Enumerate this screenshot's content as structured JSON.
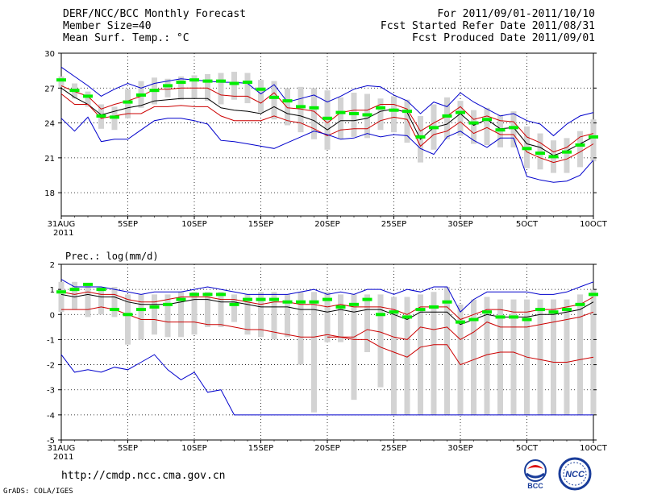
{
  "header": {
    "title": "DERF/NCC/BCC Monthly Forecast",
    "member_size": "Member Size=40",
    "variable": "Mean Surf. Temp.: °C",
    "period": "For 2011/09/01-2011/10/10",
    "fcst_started": "Fcst Started Refer Date 2011/08/31",
    "fcst_produced": "Fcst Produced Date 2011/09/01"
  },
  "footer": {
    "url": "http://cmdp.ncc.cma.gov.cn",
    "grads": "GrADS: COLA/IGES",
    "logo_bcc": "BCC",
    "logo_ncc": "NCC"
  },
  "colors": {
    "spread": "#d3d3d3",
    "mean": "#00ee00",
    "median": "#000000",
    "percentile": "#cc0000",
    "minmax": "#0000cc"
  },
  "chart_data": [
    {
      "type": "line",
      "title": "Mean Surf. Temp.: °C",
      "xlabel": "",
      "ylabel": "",
      "x_tick_labels": [
        "31AUG",
        "5SEP",
        "10SEP",
        "15SEP",
        "20SEP",
        "25SEP",
        "30SEP",
        "5OCT",
        "10OCT"
      ],
      "x_tick_days": [
        0,
        5,
        10,
        15,
        20,
        25,
        30,
        35,
        40
      ],
      "x_year_label": "2011",
      "y_ticks": [
        18,
        21,
        24,
        27,
        30
      ],
      "ylim": [
        16,
        30
      ],
      "x": [
        0,
        1,
        2,
        3,
        4,
        5,
        6,
        7,
        8,
        9,
        10,
        11,
        12,
        13,
        14,
        15,
        16,
        17,
        18,
        19,
        20,
        21,
        22,
        23,
        24,
        25,
        26,
        27,
        28,
        29,
        30,
        31,
        32,
        33,
        34,
        35,
        36,
        37,
        38,
        39,
        40
      ],
      "series": [
        {
          "name": "max",
          "role": "minmax",
          "values": [
            28.8,
            28.0,
            27.2,
            26.3,
            26.9,
            27.4,
            27.0,
            27.4,
            27.6,
            27.8,
            27.7,
            27.6,
            27.5,
            27.5,
            27.4,
            26.5,
            27.3,
            25.8,
            26.1,
            26.4,
            25.8,
            26.3,
            26.9,
            27.2,
            27.1,
            26.4,
            25.9,
            24.8,
            25.8,
            25.4,
            26.6,
            25.8,
            25.2,
            24.6,
            24.8,
            24.2,
            23.9,
            22.9,
            23.9,
            24.6,
            24.9
          ]
        },
        {
          "name": "p90",
          "role": "percentile",
          "values": [
            27.2,
            26.7,
            26.3,
            25.2,
            25.6,
            25.9,
            26.3,
            26.9,
            26.9,
            27.0,
            27.0,
            27.0,
            26.4,
            26.3,
            26.3,
            25.7,
            26.6,
            25.3,
            25.2,
            25.0,
            24.0,
            24.9,
            25.1,
            25.1,
            25.6,
            25.6,
            25.2,
            23.3,
            24.0,
            24.6,
            25.4,
            24.3,
            24.6,
            24.2,
            24.1,
            22.8,
            22.3,
            21.5,
            21.9,
            22.8,
            23.1
          ]
        },
        {
          "name": "median",
          "role": "median",
          "values": [
            27.0,
            26.2,
            25.6,
            24.7,
            25.0,
            25.3,
            25.5,
            25.9,
            26.0,
            26.1,
            26.1,
            26.1,
            25.3,
            25.1,
            25.0,
            24.8,
            25.4,
            24.8,
            24.6,
            24.2,
            23.4,
            24.2,
            24.2,
            24.4,
            25.0,
            25.2,
            24.9,
            22.6,
            23.6,
            23.9,
            24.8,
            23.8,
            24.3,
            23.5,
            23.6,
            22.2,
            21.9,
            21.2,
            21.6,
            22.2,
            22.8
          ]
        },
        {
          "name": "p10",
          "role": "percentile",
          "values": [
            26.5,
            25.6,
            25.6,
            24.4,
            24.6,
            24.8,
            24.8,
            25.4,
            25.4,
            25.5,
            25.4,
            25.4,
            24.6,
            24.2,
            24.2,
            24.2,
            24.6,
            24.2,
            24.0,
            23.5,
            22.9,
            23.4,
            23.5,
            23.5,
            24.2,
            24.5,
            24.3,
            22.0,
            23.0,
            23.3,
            24.1,
            23.1,
            23.6,
            23.0,
            23.0,
            21.5,
            21.0,
            20.6,
            20.9,
            21.5,
            22.2
          ]
        },
        {
          "name": "min",
          "role": "minmax",
          "values": [
            24.4,
            23.3,
            24.5,
            22.4,
            22.6,
            22.6,
            23.4,
            24.2,
            24.4,
            24.4,
            24.2,
            23.9,
            22.5,
            22.4,
            22.2,
            22.0,
            21.8,
            22.3,
            22.8,
            23.3,
            23.0,
            22.6,
            22.7,
            23.1,
            22.8,
            23.0,
            22.9,
            21.8,
            21.3,
            22.8,
            23.3,
            22.5,
            21.9,
            22.7,
            22.7,
            19.4,
            19.1,
            18.9,
            19.0,
            19.5,
            20.8
          ]
        },
        {
          "name": "ensemble_mean",
          "role": "mean",
          "values": [
            27.7,
            26.8,
            26.3,
            24.6,
            24.5,
            25.8,
            26.4,
            26.8,
            27.2,
            27.5,
            27.7,
            27.6,
            27.6,
            27.4,
            27.5,
            26.9,
            26.2,
            25.9,
            25.4,
            25.3,
            24.4,
            24.9,
            24.8,
            24.7,
            25.3,
            25.1,
            25.0,
            22.8,
            23.6,
            24.6,
            24.9,
            24.0,
            24.3,
            23.4,
            23.6,
            21.8,
            21.4,
            21.1,
            21.5,
            22.1,
            22.8
          ]
        }
      ],
      "spread_bars": {
        "role": "spread",
        "low": [
          27.1,
          26.1,
          25.4,
          23.5,
          23.4,
          24.4,
          25.3,
          25.6,
          26.2,
          26.0,
          26.1,
          25.9,
          25.6,
          26.0,
          25.7,
          24.9,
          24.3,
          23.8,
          23.2,
          22.6,
          21.7,
          22.6,
          22.8,
          22.7,
          23.4,
          23.2,
          22.3,
          20.6,
          21.7,
          22.6,
          22.9,
          22.2,
          22.1,
          21.9,
          21.9,
          20.1,
          20.0,
          19.7,
          19.7,
          20.2,
          20.7
        ],
        "high": [
          28.0,
          27.4,
          26.7,
          25.6,
          25.4,
          26.9,
          27.6,
          27.9,
          27.8,
          28.0,
          28.1,
          28.2,
          28.3,
          28.4,
          28.3,
          27.7,
          27.6,
          27.0,
          27.1,
          27.0,
          26.8,
          26.2,
          26.6,
          26.5,
          26.1,
          26.3,
          26.0,
          24.6,
          25.6,
          26.2,
          25.9,
          25.1,
          25.3,
          24.7,
          25.0,
          23.7,
          23.1,
          22.5,
          22.7,
          23.3,
          24.3
        ]
      }
    },
    {
      "type": "line",
      "title": "Prec.: log(mm/d)",
      "xlabel": "",
      "ylabel": "",
      "x_tick_labels": [
        "31AUG",
        "5SEP",
        "10SEP",
        "15SEP",
        "20SEP",
        "25SEP",
        "30SEP",
        "5OCT",
        "10OCT"
      ],
      "x_tick_days": [
        0,
        5,
        10,
        15,
        20,
        25,
        30,
        35,
        40
      ],
      "x_year_label": "2011",
      "y_ticks": [
        -5,
        -4,
        -3,
        -2,
        -1,
        0,
        1,
        2
      ],
      "ylim": [
        -5,
        2
      ],
      "x": [
        0,
        1,
        2,
        3,
        4,
        5,
        6,
        7,
        8,
        9,
        10,
        11,
        12,
        13,
        14,
        15,
        16,
        17,
        18,
        19,
        20,
        21,
        22,
        23,
        24,
        25,
        26,
        27,
        28,
        29,
        30,
        31,
        32,
        33,
        34,
        35,
        36,
        37,
        38,
        39,
        40
      ],
      "series": [
        {
          "name": "max",
          "role": "minmax",
          "values": [
            1.4,
            1.1,
            1.1,
            1.1,
            1.0,
            0.9,
            0.8,
            0.9,
            0.9,
            0.9,
            1.0,
            1.1,
            1.0,
            0.9,
            0.8,
            0.8,
            0.8,
            0.8,
            0.9,
            1.0,
            0.8,
            0.9,
            0.8,
            1.0,
            1.0,
            0.8,
            1.0,
            0.9,
            1.1,
            1.1,
            0.1,
            0.6,
            0.9,
            0.9,
            0.9,
            0.9,
            0.8,
            0.8,
            0.9,
            1.1,
            1.3
          ]
        },
        {
          "name": "p90",
          "role": "percentile",
          "values": [
            0.9,
            0.8,
            0.9,
            0.8,
            0.8,
            0.6,
            0.5,
            0.5,
            0.6,
            0.7,
            0.7,
            0.7,
            0.6,
            0.6,
            0.5,
            0.4,
            0.5,
            0.5,
            0.4,
            0.4,
            0.3,
            0.4,
            0.3,
            0.3,
            0.3,
            0.2,
            0.0,
            0.3,
            0.3,
            0.3,
            -0.2,
            0.0,
            0.2,
            0.2,
            0.1,
            0.1,
            0.2,
            0.2,
            0.3,
            0.4,
            0.7
          ]
        },
        {
          "name": "median",
          "role": "median",
          "values": [
            0.8,
            0.7,
            0.8,
            0.7,
            0.7,
            0.5,
            0.4,
            0.4,
            0.4,
            0.5,
            0.6,
            0.6,
            0.5,
            0.5,
            0.4,
            0.3,
            0.3,
            0.3,
            0.2,
            0.2,
            0.1,
            0.2,
            0.1,
            0.2,
            0.2,
            0.0,
            -0.2,
            0.1,
            0.1,
            0.1,
            -0.4,
            -0.2,
            0.0,
            -0.1,
            -0.1,
            -0.1,
            0.0,
            0.0,
            0.1,
            0.2,
            0.5
          ]
        },
        {
          "name": "p10",
          "role": "percentile",
          "values": [
            0.2,
            0.2,
            0.2,
            0.3,
            0.2,
            0.0,
            -0.2,
            -0.2,
            -0.3,
            -0.3,
            -0.3,
            -0.4,
            -0.4,
            -0.5,
            -0.6,
            -0.6,
            -0.7,
            -0.8,
            -0.9,
            -0.9,
            -0.8,
            -0.9,
            -0.9,
            -0.6,
            -0.7,
            -0.9,
            -1.0,
            -0.5,
            -0.6,
            -0.5,
            -1.0,
            -0.7,
            -0.3,
            -0.5,
            -0.5,
            -0.5,
            -0.4,
            -0.3,
            -0.2,
            -0.1,
            0.1
          ]
        },
        {
          "name": "p_low",
          "role": "percentile",
          "values": [
            null,
            null,
            null,
            null,
            null,
            null,
            null,
            null,
            null,
            null,
            null,
            null,
            null,
            null,
            null,
            null,
            null,
            null,
            null,
            null,
            -0.9,
            -0.9,
            -1.0,
            -1.0,
            -1.3,
            -1.5,
            -1.7,
            -1.3,
            -1.2,
            -1.2,
            -2.0,
            -1.8,
            -1.6,
            -1.5,
            -1.5,
            -1.7,
            -1.8,
            -1.9,
            -1.9,
            -1.8,
            -1.7
          ]
        },
        {
          "name": "min",
          "role": "minmax",
          "values": [
            -1.6,
            -2.3,
            -2.2,
            -2.3,
            -2.1,
            -2.2,
            -1.9,
            -1.6,
            -2.2,
            -2.6,
            -2.3,
            -3.1,
            -3.0,
            -4.0,
            -4.0,
            -4.0,
            -4.0,
            -4.0,
            -4.0,
            -4.0,
            -4.0,
            -4.0,
            -4.0,
            -4.0,
            -4.0,
            -4.0,
            -4.0,
            -4.0,
            -4.0,
            -4.0,
            -4.0,
            -4.0,
            -4.0,
            -4.0,
            -4.0,
            -4.0,
            -4.0,
            -4.0,
            -4.0,
            -4.0,
            -4.0
          ]
        },
        {
          "name": "ensemble_mean",
          "role": "mean",
          "values": [
            0.9,
            1.0,
            1.2,
            1.0,
            0.2,
            0.0,
            0.2,
            0.3,
            0.4,
            0.6,
            0.8,
            0.8,
            0.8,
            0.4,
            0.6,
            0.6,
            0.6,
            0.5,
            0.5,
            0.5,
            0.6,
            0.3,
            0.4,
            0.6,
            0.0,
            0.1,
            -0.1,
            0.2,
            0.3,
            0.5,
            -0.3,
            -0.2,
            0.1,
            -0.1,
            -0.1,
            -0.2,
            0.2,
            0.1,
            0.2,
            0.4,
            0.8
          ]
        }
      ],
      "spread_bars": {
        "role": "spread",
        "low": [
          0.1,
          0.2,
          -0.1,
          0.0,
          -0.1,
          -1.2,
          -1.0,
          -0.8,
          -0.9,
          -0.9,
          -0.8,
          -0.5,
          -0.5,
          -0.3,
          -0.8,
          -0.9,
          -1.0,
          -0.9,
          -2.0,
          -3.9,
          -1.1,
          -1.1,
          -3.4,
          -1.5,
          -2.9,
          -4.0,
          -4.0,
          -4.0,
          -4.0,
          -4.0,
          -4.0,
          -4.0,
          -4.0,
          -4.0,
          -4.0,
          -4.0,
          -4.0,
          -4.0,
          -4.0,
          -4.0,
          -4.0
        ],
        "high": [
          1.3,
          1.3,
          1.2,
          1.1,
          1.1,
          0.8,
          0.8,
          0.8,
          0.8,
          0.9,
          0.9,
          0.9,
          0.9,
          0.8,
          0.8,
          0.9,
          0.9,
          0.8,
          0.9,
          0.9,
          0.9,
          0.8,
          0.8,
          0.8,
          0.8,
          0.7,
          0.7,
          0.8,
          0.9,
          1.1,
          0.4,
          0.6,
          0.7,
          0.6,
          0.6,
          0.6,
          0.6,
          0.6,
          0.6,
          0.8,
          1.0
        ]
      }
    }
  ]
}
